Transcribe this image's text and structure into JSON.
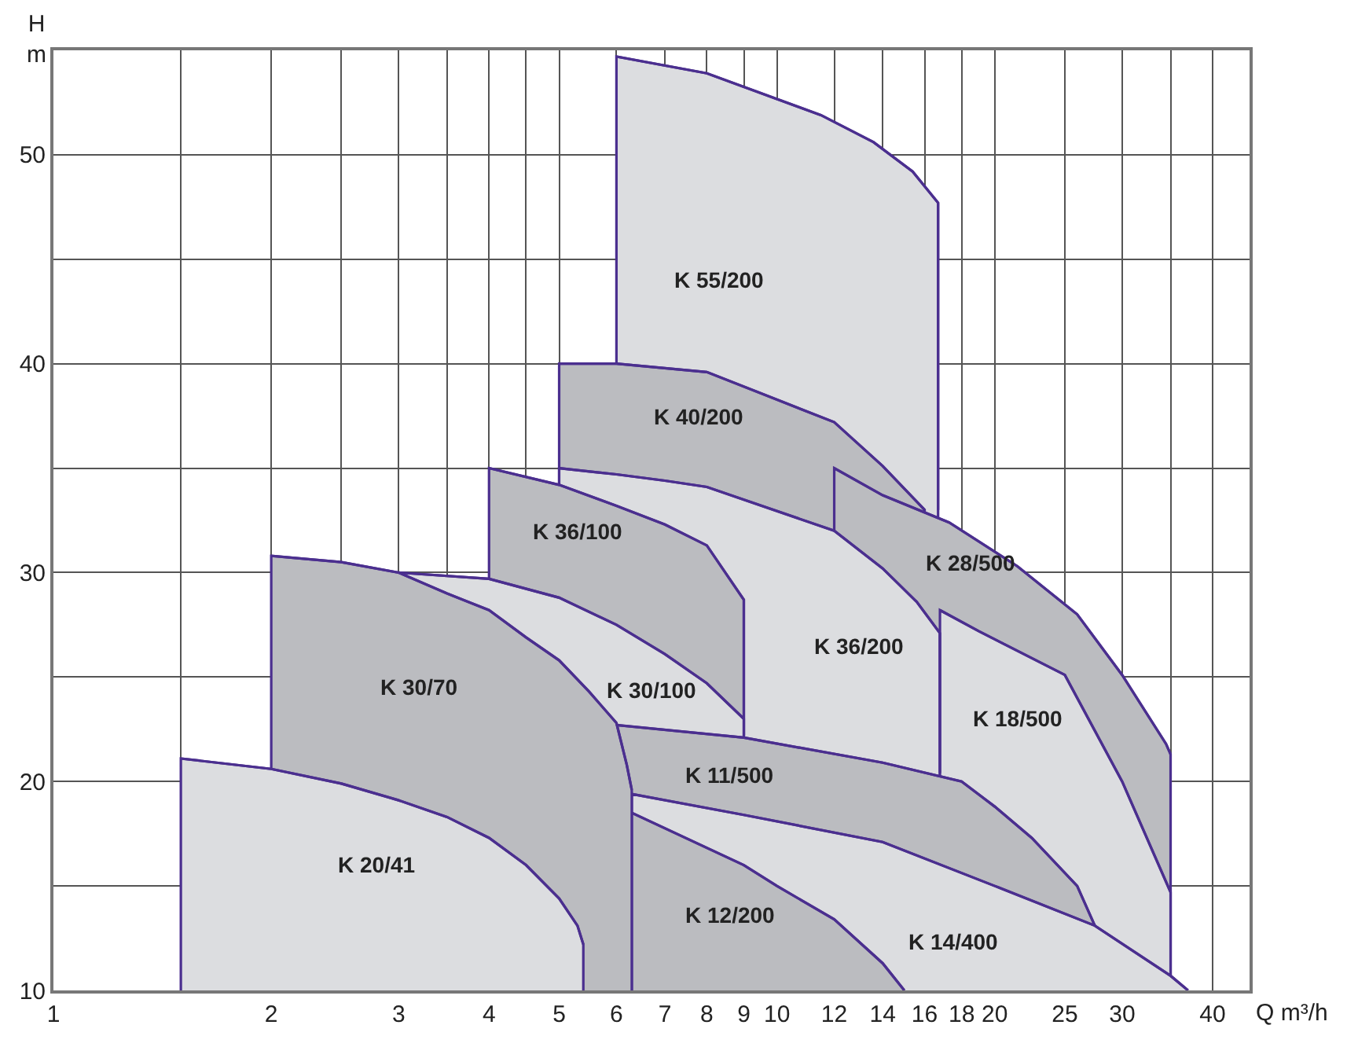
{
  "chart_data": {
    "type": "area",
    "xlabel": "Q m³/h",
    "ylabel": "H m",
    "log": "x",
    "grid": true,
    "xlim": [
      1,
      45
    ],
    "ylim": [
      10,
      55
    ],
    "xticks": [
      1,
      {
        "value": 1.5,
        "label": null
      },
      2,
      {
        "value": 2.5,
        "label": null
      },
      3,
      {
        "value": 3.5,
        "label": null
      },
      4,
      {
        "value": 4.5,
        "label": null
      },
      5,
      6,
      7,
      8,
      9,
      10,
      12,
      14,
      16,
      18,
      20,
      25,
      30,
      {
        "value": 35,
        "label": null
      },
      40
    ],
    "yticks": [
      10,
      {
        "value": 15,
        "label": null
      },
      20,
      {
        "value": 25,
        "label": null
      },
      30,
      {
        "value": 35,
        "label": null
      },
      40,
      {
        "value": 45,
        "label": null
      },
      50
    ],
    "series": [
      {
        "name": "K 55/200",
        "color": "#dcdde0",
        "x": [
          6,
          8,
          11.5,
          13.6,
          15.4,
          16.7,
          16.7
        ],
        "values": [
          54.7,
          53.9,
          51.9,
          50.6,
          49.2,
          47.7,
          33
        ]
      },
      {
        "name": "K 40/200",
        "color": "#bbbcc0",
        "x": [
          5,
          6,
          8,
          12,
          14,
          16
        ],
        "values": [
          40,
          40,
          39.6,
          37.2,
          35.1,
          33
        ]
      },
      {
        "name": "K 28/500",
        "color": "#bbbcc0",
        "x": [
          12,
          14,
          17.3,
          21.5,
          26,
          30,
          34.5,
          35
        ],
        "values": [
          35,
          33.7,
          32.4,
          30.3,
          28,
          25.1,
          21.8,
          21.3
        ]
      },
      {
        "name": "K 36/200",
        "color": "#dcdde0",
        "x": [
          5,
          6,
          7,
          8,
          12,
          14,
          15.6,
          16.8,
          16.8
        ],
        "values": [
          35,
          34.7,
          34.4,
          34.1,
          32,
          30.2,
          28.6,
          27.1,
          20.4
        ]
      },
      {
        "name": "K 18/500",
        "color": "#dcdde0",
        "x": [
          16.8,
          19,
          25,
          30,
          35
        ],
        "values": [
          28.2,
          27.2,
          25.1,
          20,
          14.7
        ]
      },
      {
        "name": "K 36/100",
        "color": "#bbbcc0",
        "x": [
          4,
          5,
          6,
          7,
          8,
          9,
          9
        ],
        "values": [
          35,
          34.2,
          33.2,
          32.3,
          31.3,
          28.7,
          22.2
        ]
      },
      {
        "name": "K 30/100",
        "color": "#dcdde0",
        "x": [
          3,
          4,
          5,
          6,
          7,
          8,
          9
        ],
        "values": [
          30,
          29.7,
          28.8,
          27.5,
          26.1,
          24.7,
          23
        ]
      },
      {
        "name": "K 11/500",
        "color": "#bbbcc0",
        "x": [
          6,
          9,
          14,
          18,
          20,
          22.5,
          26,
          27.5
        ],
        "values": [
          22.7,
          22.1,
          20.9,
          20,
          18.8,
          17.3,
          15,
          13.1
        ]
      },
      {
        "name": "K 14/400",
        "color": "#dcdde0",
        "x": [
          6.3,
          9,
          14,
          20,
          27.5,
          35,
          37
        ],
        "values": [
          19.4,
          18.4,
          17.1,
          15,
          13.1,
          10.7,
          10
        ]
      },
      {
        "name": "K 12/200",
        "color": "#bbbcc0",
        "x": [
          6.3,
          9,
          10,
          12,
          14,
          15
        ],
        "values": [
          18.5,
          16,
          15,
          13.4,
          11.3,
          10
        ]
      },
      {
        "name": "K 30/70",
        "color": "#bbbcc0",
        "x": [
          2,
          2.5,
          3,
          3.5,
          4,
          4.5,
          5,
          5.5,
          6,
          6.2,
          6.3
        ],
        "values": [
          30.8,
          30.5,
          30,
          29,
          28.2,
          26.9,
          25.8,
          24.3,
          22.8,
          20.8,
          19.6
        ]
      },
      {
        "name": "K 20/41",
        "color": "#dcdde0",
        "x": [
          1.5,
          2,
          2.5,
          3,
          3.5,
          4,
          4.5,
          5,
          5.3,
          5.4
        ],
        "values": [
          21.1,
          20.6,
          19.9,
          19.1,
          18.3,
          17.3,
          16,
          14.4,
          13.1,
          12.2
        ]
      }
    ]
  }
}
